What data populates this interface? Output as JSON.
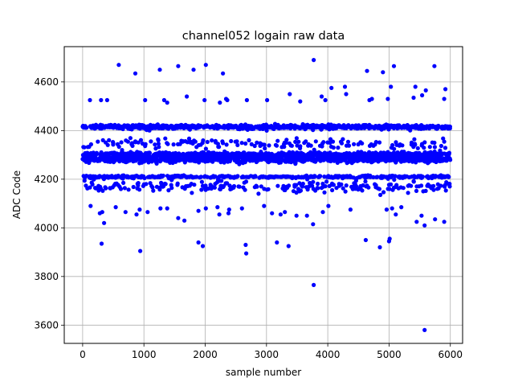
{
  "chart_data": {
    "type": "scatter",
    "title": "channel052 logain raw data",
    "xlabel": "sample number",
    "ylabel": "ADC Code",
    "xlim": [
      -300,
      6200
    ],
    "ylim": [
      3525,
      4745
    ],
    "xticks": [
      0,
      1000,
      2000,
      3000,
      4000,
      5000,
      6000
    ],
    "yticks": [
      3600,
      3800,
      4000,
      4200,
      4400,
      4600
    ],
    "grid": true,
    "marker_color": "#0000ff",
    "series": [
      {
        "sample_count": 6000,
        "levels": [
          {
            "value": 4415,
            "spread": 10,
            "fraction": 0.22
          },
          {
            "value": 4300,
            "spread": 12,
            "fraction": 0.22
          },
          {
            "value": 4280,
            "spread": 12,
            "fraction": 0.2
          },
          {
            "value": 4210,
            "spread": 6,
            "fraction": 0.12
          },
          {
            "value": 4170,
            "spread": 25,
            "fraction": 0.07
          },
          {
            "value": 4345,
            "spread": 25,
            "fraction": 0.05
          }
        ],
        "outliers": [
          [
            120,
            4525
          ],
          [
            300,
            4525
          ],
          [
            400,
            4525
          ],
          [
            590,
            4670
          ],
          [
            860,
            4635
          ],
          [
            1020,
            4525
          ],
          [
            1260,
            4650
          ],
          [
            1330,
            4525
          ],
          [
            1380,
            4515
          ],
          [
            1560,
            4665
          ],
          [
            1700,
            4540
          ],
          [
            1810,
            4650
          ],
          [
            1990,
            4525
          ],
          [
            2010,
            4670
          ],
          [
            2240,
            4515
          ],
          [
            2290,
            4635
          ],
          [
            2340,
            4530
          ],
          [
            2360,
            4525
          ],
          [
            2680,
            4525
          ],
          [
            3010,
            4525
          ],
          [
            3380,
            4550
          ],
          [
            3550,
            4520
          ],
          [
            3770,
            4690
          ],
          [
            3900,
            4540
          ],
          [
            3960,
            4525
          ],
          [
            4060,
            4575
          ],
          [
            4280,
            4580
          ],
          [
            4300,
            4550
          ],
          [
            4640,
            4645
          ],
          [
            4680,
            4525
          ],
          [
            4720,
            4530
          ],
          [
            4900,
            4640
          ],
          [
            4980,
            4530
          ],
          [
            5030,
            4580
          ],
          [
            5080,
            4665
          ],
          [
            5400,
            4535
          ],
          [
            5430,
            4580
          ],
          [
            5540,
            4545
          ],
          [
            5600,
            4565
          ],
          [
            5740,
            4665
          ],
          [
            5900,
            4530
          ],
          [
            5920,
            4570
          ],
          [
            130,
            4090
          ],
          [
            280,
            4060
          ],
          [
            320,
            4065
          ],
          [
            350,
            4020
          ],
          [
            540,
            4085
          ],
          [
            700,
            4065
          ],
          [
            880,
            4055
          ],
          [
            930,
            4075
          ],
          [
            1060,
            4065
          ],
          [
            1270,
            4080
          ],
          [
            1380,
            4080
          ],
          [
            1560,
            4040
          ],
          [
            1660,
            4030
          ],
          [
            1890,
            4070
          ],
          [
            2010,
            4080
          ],
          [
            2200,
            4085
          ],
          [
            2230,
            4055
          ],
          [
            2380,
            4060
          ],
          [
            2390,
            4075
          ],
          [
            2600,
            4080
          ],
          [
            2960,
            4090
          ],
          [
            3090,
            4060
          ],
          [
            3230,
            4055
          ],
          [
            3300,
            4065
          ],
          [
            3490,
            4050
          ],
          [
            3660,
            4050
          ],
          [
            3760,
            4015
          ],
          [
            3920,
            4065
          ],
          [
            4010,
            4090
          ],
          [
            4370,
            4075
          ],
          [
            4960,
            4075
          ],
          [
            5050,
            4080
          ],
          [
            5110,
            4055
          ],
          [
            5200,
            4085
          ],
          [
            5450,
            4025
          ],
          [
            5530,
            4050
          ],
          [
            5580,
            4010
          ],
          [
            5750,
            4035
          ],
          [
            5900,
            4025
          ],
          [
            310,
            3935
          ],
          [
            940,
            3905
          ],
          [
            1890,
            3940
          ],
          [
            1960,
            3925
          ],
          [
            2660,
            3930
          ],
          [
            2670,
            3895
          ],
          [
            3170,
            3940
          ],
          [
            3360,
            3925
          ],
          [
            3770,
            3765
          ],
          [
            4620,
            3950
          ],
          [
            4850,
            3920
          ],
          [
            5000,
            3945
          ],
          [
            5010,
            3955
          ],
          [
            5580,
            3580
          ]
        ]
      }
    ]
  }
}
